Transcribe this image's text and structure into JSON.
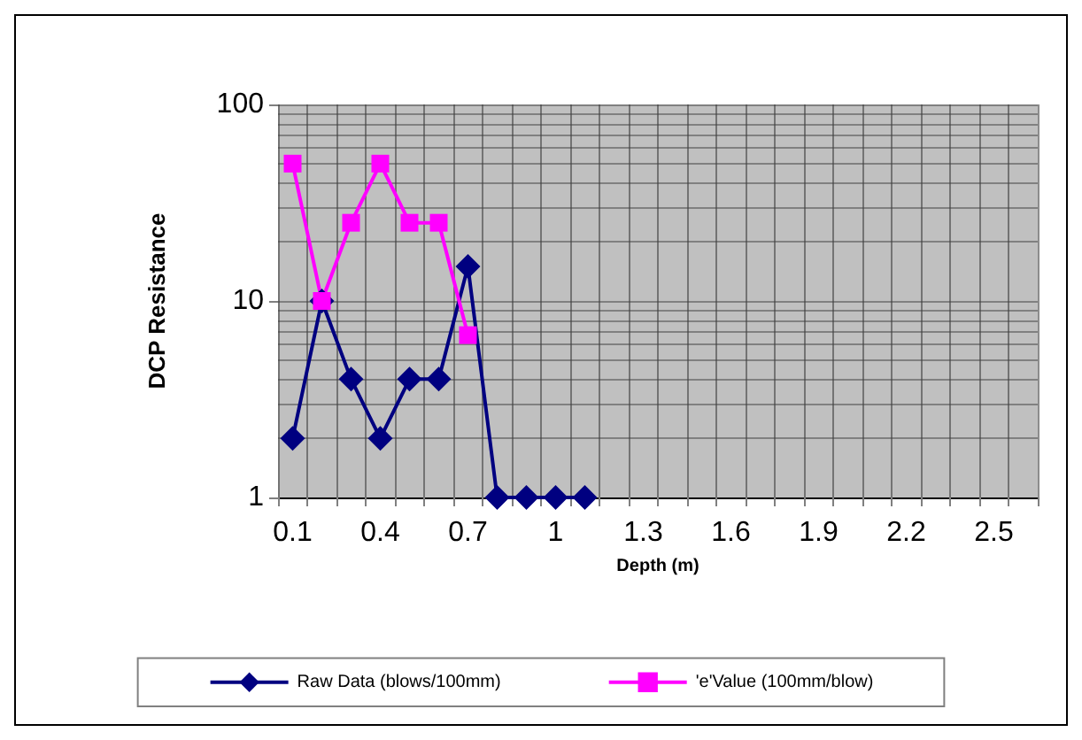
{
  "chart_data": {
    "type": "line",
    "xlabel": "Depth (m)",
    "ylabel": "DCP Resistance",
    "categories": [
      "0.1",
      null,
      null,
      "0.4",
      null,
      null,
      "0.7",
      null,
      null,
      "1",
      null,
      null,
      "1.3",
      null,
      null,
      "1.6",
      null,
      null,
      "1.9",
      null,
      null,
      "2.2",
      null,
      null,
      "2.5",
      null
    ],
    "series": [
      {
        "name": "Raw Data (blows/100mm)",
        "color": "#000080",
        "marker": "diamond",
        "values": [
          2,
          10,
          4,
          2,
          4,
          4,
          15,
          1,
          1,
          1,
          1,
          null,
          null,
          null,
          null,
          null,
          null,
          null,
          null,
          null,
          null,
          null,
          null,
          null,
          null,
          null
        ]
      },
      {
        "name": "'e'Value (100mm/blow)",
        "color": "#ff00ff",
        "marker": "square",
        "values": [
          50,
          10,
          25,
          50,
          25,
          25,
          6.7,
          null,
          null,
          null,
          null,
          null,
          null,
          null,
          null,
          null,
          null,
          null,
          null,
          null,
          null,
          null,
          null,
          null,
          null,
          null
        ]
      }
    ],
    "log": true,
    "ylim": [
      1,
      100
    ],
    "yticks": [
      1,
      10,
      100
    ],
    "grid": true,
    "legend": "bottom"
  }
}
